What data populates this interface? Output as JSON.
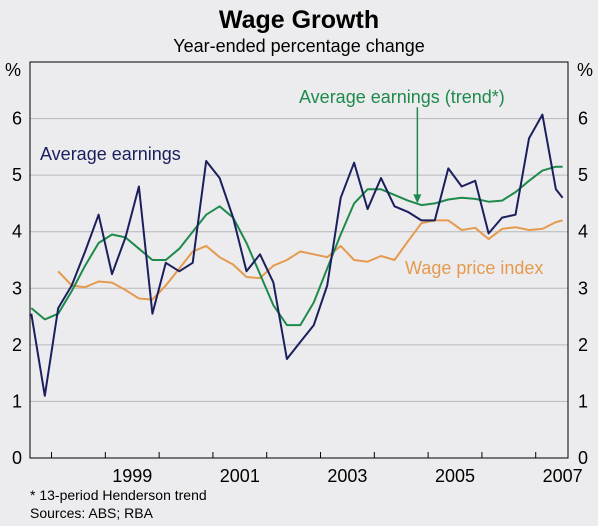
{
  "chart_data": {
    "type": "line",
    "title": "Wage Growth",
    "subtitle": "Year-ended percentage change",
    "y_unit_left": "%",
    "y_unit_right": "%",
    "ylim": [
      0,
      7
    ],
    "y_ticks": [
      0,
      1,
      2,
      3,
      4,
      5,
      6
    ],
    "xlim": [
      1997.6,
      2007.6
    ],
    "x_ticks": [
      1999,
      2001,
      2003,
      2005,
      2007
    ],
    "x_tick_labels": [
      "1999",
      "2001",
      "2003",
      "2005",
      "2007"
    ],
    "grid": "horizontal",
    "series": [
      {
        "name": "Average earnings",
        "color": "#1b1f5e",
        "x": [
          1997.625,
          1997.875,
          1998.125,
          1998.375,
          1998.625,
          1998.875,
          1999.125,
          1999.375,
          1999.625,
          1999.875,
          2000.125,
          2000.375,
          2000.625,
          2000.875,
          2001.125,
          2001.375,
          2001.625,
          2001.875,
          2002.125,
          2002.375,
          2002.625,
          2002.875,
          2003.125,
          2003.375,
          2003.625,
          2003.875,
          2004.125,
          2004.375,
          2004.625,
          2004.875,
          2005.125,
          2005.375,
          2005.625,
          2005.875,
          2006.125,
          2006.375,
          2006.625,
          2006.875,
          2007.125,
          2007.375,
          2007.5
        ],
        "values": [
          2.55,
          1.1,
          2.65,
          3.05,
          3.65,
          4.3,
          3.25,
          3.9,
          4.8,
          2.55,
          3.45,
          3.3,
          3.45,
          5.25,
          4.95,
          4.25,
          3.3,
          3.6,
          3.1,
          1.75,
          2.05,
          2.35,
          3.05,
          4.6,
          5.22,
          4.4,
          4.95,
          4.45,
          4.35,
          4.2,
          4.2,
          5.12,
          4.8,
          4.9,
          3.97,
          4.25,
          4.3,
          5.65,
          6.07,
          4.75,
          4.6
        ]
      },
      {
        "name": "Average earnings (trend*)",
        "color": "#1e8a4c",
        "x": [
          1997.625,
          1997.875,
          1998.125,
          1998.375,
          1998.625,
          1998.875,
          1999.125,
          1999.375,
          1999.625,
          1999.875,
          2000.125,
          2000.375,
          2000.625,
          2000.875,
          2001.125,
          2001.375,
          2001.625,
          2001.875,
          2002.125,
          2002.375,
          2002.625,
          2002.875,
          2003.125,
          2003.375,
          2003.625,
          2003.875,
          2004.125,
          2004.375,
          2004.625,
          2004.875,
          2005.125,
          2005.375,
          2005.625,
          2005.875,
          2006.125,
          2006.375,
          2006.625,
          2006.875,
          2007.125,
          2007.375,
          2007.5
        ],
        "values": [
          2.65,
          2.45,
          2.55,
          2.95,
          3.4,
          3.8,
          3.95,
          3.9,
          3.7,
          3.5,
          3.5,
          3.7,
          4.0,
          4.3,
          4.45,
          4.25,
          3.8,
          3.25,
          2.7,
          2.35,
          2.35,
          2.75,
          3.35,
          3.95,
          4.5,
          4.75,
          4.75,
          4.65,
          4.55,
          4.47,
          4.5,
          4.57,
          4.6,
          4.58,
          4.53,
          4.55,
          4.7,
          4.9,
          5.08,
          5.15,
          5.15
        ]
      },
      {
        "name": "Wage price index",
        "color": "#e59a4e",
        "x": [
          1998.125,
          1998.375,
          1998.625,
          1998.875,
          1999.125,
          1999.375,
          1999.625,
          1999.875,
          2000.125,
          2000.375,
          2000.625,
          2000.875,
          2001.125,
          2001.375,
          2001.625,
          2001.875,
          2002.125,
          2002.375,
          2002.625,
          2002.875,
          2003.125,
          2003.375,
          2003.625,
          2003.875,
          2004.125,
          2004.375,
          2004.625,
          2004.875,
          2005.125,
          2005.375,
          2005.625,
          2005.875,
          2006.125,
          2006.375,
          2006.625,
          2006.875,
          2007.125,
          2007.375,
          2007.5
        ],
        "values": [
          3.3,
          3.05,
          3.02,
          3.12,
          3.1,
          2.97,
          2.82,
          2.8,
          3.05,
          3.35,
          3.65,
          3.75,
          3.55,
          3.42,
          3.2,
          3.18,
          3.4,
          3.5,
          3.65,
          3.6,
          3.55,
          3.75,
          3.5,
          3.47,
          3.57,
          3.5,
          3.83,
          4.15,
          4.2,
          4.2,
          4.03,
          4.07,
          3.87,
          4.05,
          4.08,
          4.03,
          4.05,
          4.17,
          4.2
        ]
      }
    ],
    "labels": {
      "average_earnings": "Average earnings",
      "trend": "Average earnings (trend*)",
      "wpi": "Wage price index"
    },
    "annotation_arrow": {
      "from": [
        2004.8,
        6.2
      ],
      "to": [
        2004.8,
        4.5
      ]
    },
    "footnotes": [
      "*    13-period Henderson trend",
      "Sources: ABS; RBA"
    ]
  }
}
